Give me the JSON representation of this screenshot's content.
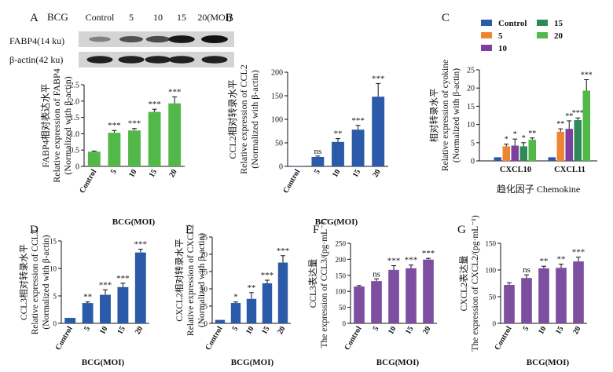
{
  "figure": {
    "panel_labels": [
      "A",
      "B",
      "C",
      "D",
      "E",
      "F",
      "G"
    ]
  },
  "panel_a": {
    "blot": {
      "header_label": "BCG",
      "lane_labels": [
        "Control",
        "5",
        "10",
        "15",
        "20(MOI)"
      ],
      "bands": [
        {
          "label": "FABP4(14 ku)",
          "intensities": [
            0.35,
            0.62,
            0.66,
            0.95,
            0.98
          ]
        },
        {
          "label": "β-actin(42 ku)",
          "intensities": [
            0.9,
            0.9,
            0.9,
            0.9,
            0.9
          ]
        }
      ]
    }
  },
  "colors": {
    "green": "#52b84a",
    "blue": "#2b5ba8",
    "purple": "#7e4ea0",
    "orange": "#ee8533",
    "dark_green": "#2e8b57",
    "navy": "#2b5ba8"
  },
  "chart_data": [
    {
      "id": "A",
      "type": "bar",
      "color": "#52b84a",
      "categories": [
        "Control",
        "5",
        "10",
        "15",
        "20"
      ],
      "values": [
        0.45,
        1.03,
        1.1,
        1.67,
        1.93
      ],
      "errors": [
        0.02,
        0.07,
        0.06,
        0.08,
        0.2
      ],
      "sig": [
        "",
        "***",
        "***",
        "***",
        "***"
      ],
      "ylim": [
        0,
        2.5
      ],
      "yticks": [
        "0",
        "0.5",
        "1.0",
        "1.5",
        "2.0",
        "2.5"
      ],
      "ylabel": [
        "FABP4相对表达水平",
        "Relative expression of FABP4",
        "(Normalized with β-actin)"
      ],
      "xlabel": "BCG(MOI)"
    },
    {
      "id": "B",
      "type": "bar",
      "color": "#2b5ba8",
      "categories": [
        "Control",
        "5",
        "10",
        "15",
        "20"
      ],
      "values": [
        1,
        20,
        52,
        78,
        148
      ],
      "errors": [
        0,
        2,
        7,
        9,
        28
      ],
      "sig": [
        "",
        "ns",
        "**",
        "***",
        "***"
      ],
      "ylim": [
        0,
        200
      ],
      "yticks": [
        "0",
        "50",
        "100",
        "150",
        "200"
      ],
      "ylabel": [
        "CCL2相对转录水平",
        "Relative expression of CCL2",
        "(Normalized with β-actin)"
      ],
      "xlabel": "BCG(MOI)"
    },
    {
      "id": "C",
      "type": "bar",
      "categories": [
        "CXCL10",
        "CXCL11"
      ],
      "series": [
        {
          "name": "Control",
          "color": "#2b5ba8",
          "values": [
            1,
            1
          ],
          "errors": [
            0,
            0
          ],
          "sig": [
            "",
            ""
          ]
        },
        {
          "name": "5",
          "color": "#ee8533",
          "values": [
            4,
            8
          ],
          "errors": [
            0.6,
            0.8
          ],
          "sig": [
            "*",
            "**"
          ]
        },
        {
          "name": "10",
          "color": "#7e3fa0",
          "values": [
            4.2,
            8.8
          ],
          "errors": [
            1.8,
            2.2
          ],
          "sig": [
            "*",
            "**"
          ]
        },
        {
          "name": "15",
          "color": "#2e8b57",
          "values": [
            4,
            11.2
          ],
          "errors": [
            1.0,
            0.6
          ],
          "sig": [
            "*",
            "***"
          ]
        },
        {
          "name": "20",
          "color": "#52b84a",
          "values": [
            5.8,
            19.3
          ],
          "errors": [
            0.5,
            3.0
          ],
          "sig": [
            "**",
            "***"
          ]
        }
      ],
      "ylim": [
        0,
        25
      ],
      "yticks": [
        "0",
        "5",
        "10",
        "15",
        "20",
        "25"
      ],
      "ylabel": [
        "相对转录水平",
        "Relative expression of cyokine",
        "(Normalized with β-actin)"
      ],
      "xlabel": "趋化因子 Chemokine",
      "legend_position": "top"
    },
    {
      "id": "D",
      "type": "bar",
      "color": "#2b5ba8",
      "categories": [
        "Control",
        "5",
        "10",
        "15",
        "20"
      ],
      "values": [
        1,
        3.7,
        5.2,
        6.6,
        12.9
      ],
      "errors": [
        0,
        0.2,
        0.9,
        0.7,
        0.6
      ],
      "sig": [
        "",
        "**",
        "***",
        "***",
        "***"
      ],
      "ylim": [
        0,
        15
      ],
      "yticks": [
        "0",
        "5",
        "10",
        "15"
      ],
      "ylabel": [
        "CCL3相对转录水平",
        "Relative expression of CCL3",
        "(Normalized with β-actin)"
      ],
      "xlabel": "BCG(MOI)"
    },
    {
      "id": "E",
      "type": "bar",
      "color": "#2b5ba8",
      "categories": [
        "Control",
        "5",
        "10",
        "15",
        "20"
      ],
      "values": [
        1,
        5.9,
        7.1,
        11.6,
        17.6
      ],
      "errors": [
        0,
        0.3,
        1.8,
        0.9,
        2.0
      ],
      "sig": [
        "",
        "*",
        "**",
        "***",
        "***"
      ],
      "ylim": [
        0,
        25
      ],
      "yticks": [
        "0",
        "5",
        "10",
        "15",
        "20",
        "25"
      ],
      "ylabel": [
        "CXCL2相对转录水平",
        "Relative expression of CXCL2",
        "(Normalized with β-actin)"
      ],
      "xlabel": "BCG(MOI)"
    },
    {
      "id": "F",
      "type": "bar",
      "color": "#7e4ea0",
      "categories": [
        "Control",
        "5",
        "10",
        "15",
        "20"
      ],
      "values": [
        115,
        132,
        167,
        172,
        199
      ],
      "errors": [
        3,
        7,
        13,
        10,
        4
      ],
      "sig": [
        "",
        "ns",
        "***",
        "***",
        "***"
      ],
      "ylim": [
        0,
        250
      ],
      "yticks": [
        "0",
        "50",
        "100",
        "150",
        "200",
        "250"
      ],
      "ylabel": [
        "CCL3表达量",
        "The expression of CCL3/(pg·mL⁻¹)"
      ],
      "xlabel": "BCG(MOI)"
    },
    {
      "id": "G",
      "type": "bar",
      "color": "#7e4ea0",
      "categories": [
        "Control",
        "5",
        "10",
        "15",
        "20"
      ],
      "values": [
        72,
        85,
        103,
        104,
        116
      ],
      "errors": [
        4,
        6,
        4,
        7,
        8
      ],
      "sig": [
        "",
        "ns",
        "**",
        "**",
        "***"
      ],
      "ylim": [
        0,
        150
      ],
      "yticks": [
        "0",
        "50",
        "100",
        "150"
      ],
      "ylabel": [
        "CXCL2表达量",
        "The expression of CXCL2/(pg·mL⁻¹)"
      ],
      "xlabel": "BCG(MOI)"
    }
  ]
}
